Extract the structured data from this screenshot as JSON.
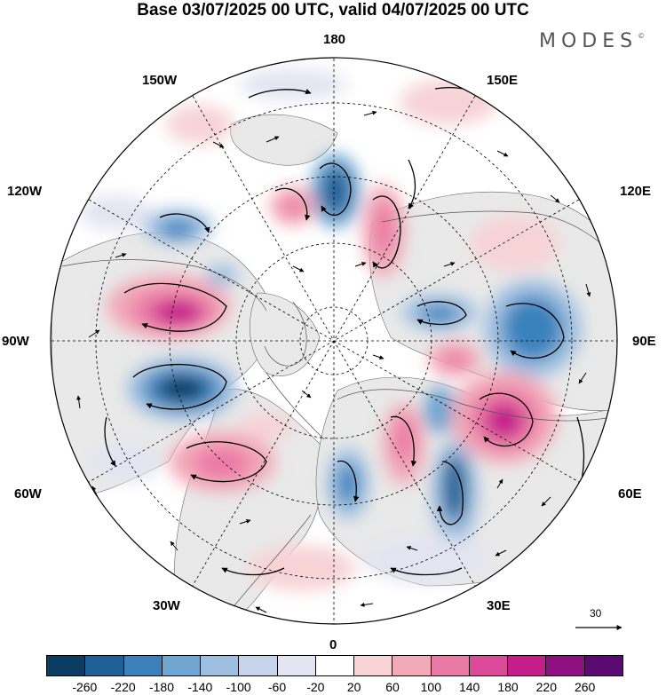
{
  "title": "Base 03/07/2025 00 UTC, valid 04/07/2025 00 UTC",
  "logo": "MODES",
  "logo_mark": "©",
  "longitude_labels": {
    "top": "180",
    "top_left": "150W",
    "top_right": "150E",
    "upper_left": "120W",
    "upper_right": "120E",
    "left": "90W",
    "right": "90E",
    "lower_left": "60W",
    "lower_right": "60E",
    "bottom_left": "30W",
    "bottom_right": "30E",
    "bottom": "0"
  },
  "reference_vector": "30",
  "colorbar": {
    "colors": [
      "#0b3d63",
      "#1f6196",
      "#3b82bd",
      "#6fa6d2",
      "#9ebfe0",
      "#c7d3ea",
      "#e4e4f2",
      "#ffffff",
      "#f7d3d6",
      "#f2a9b8",
      "#eb79a6",
      "#de4a9a",
      "#c51d8a",
      "#8e1080",
      "#5b0a72"
    ],
    "ticks": [
      "-260",
      "-220",
      "-180",
      "-140",
      "-100",
      "-60",
      "-20",
      "20",
      "60",
      "100",
      "140",
      "180",
      "220",
      "260"
    ]
  },
  "map": {
    "projection": "north-polar-stereographic",
    "latitude_circles_deg": [
      20,
      40,
      60,
      80
    ],
    "meridian_step_deg": 30
  }
}
